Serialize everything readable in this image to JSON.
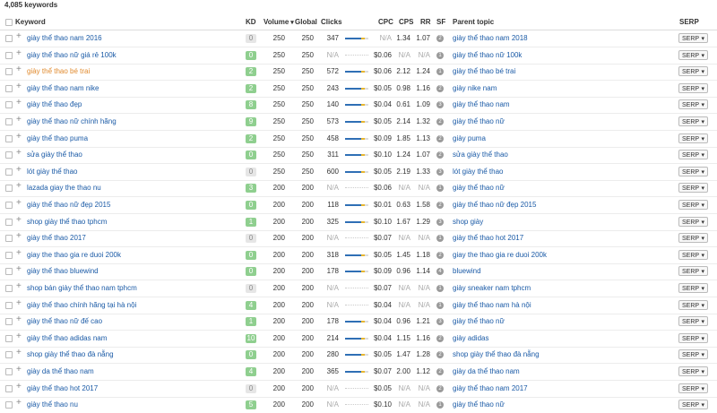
{
  "summary": "4,085 keywords",
  "columns": {
    "keyword": "Keyword",
    "kd": "KD",
    "volume": "Volume",
    "global": "Global",
    "clicks": "Clicks",
    "cpc": "CPC",
    "cps": "CPS",
    "rr": "RR",
    "sf": "SF",
    "parent": "Parent topic",
    "serp": "SERP"
  },
  "serp_button": "SERP",
  "rows": [
    {
      "keyword": "giày thể thao nam 2016",
      "kd": "0",
      "kd_color": "#e6e6e6",
      "volume": "250",
      "global": "250",
      "clicks": "347",
      "cpc": "N/A",
      "cps": "1.34",
      "rr": "1.07",
      "sf": "2",
      "parent": "giày thể thao nam 2018"
    },
    {
      "keyword": "giày thể thao nữ giá rẻ 100k",
      "kd": "0",
      "kd_color": "#8fcf8f",
      "volume": "250",
      "global": "250",
      "clicks": "N/A",
      "cpc": "$0.06",
      "cps": "N/A",
      "rr": "N/A",
      "sf": "1",
      "parent": "giày thể thao nữ 100k"
    },
    {
      "keyword": "giày thể thao bé trai",
      "keyword_color": "#e0892c",
      "kd": "2",
      "kd_color": "#8fcf8f",
      "volume": "250",
      "global": "250",
      "clicks": "572",
      "cpc": "$0.06",
      "cps": "2.12",
      "rr": "1.24",
      "sf": "1",
      "parent": "giày thể thao bé trai"
    },
    {
      "keyword": "giày thể thao nam nike",
      "kd": "2",
      "kd_color": "#8fcf8f",
      "volume": "250",
      "global": "250",
      "clicks": "243",
      "cpc": "$0.05",
      "cps": "0.98",
      "rr": "1.16",
      "sf": "2",
      "parent": "giày nike nam"
    },
    {
      "keyword": "giày thể thao đẹp",
      "kd": "8",
      "kd_color": "#8fcf8f",
      "volume": "250",
      "global": "250",
      "clicks": "140",
      "cpc": "$0.04",
      "cps": "0.61",
      "rr": "1.09",
      "sf": "3",
      "parent": "giày thể thao nam"
    },
    {
      "keyword": "giày thể thao nữ chính hãng",
      "kd": "9",
      "kd_color": "#8fcf8f",
      "volume": "250",
      "global": "250",
      "clicks": "573",
      "cpc": "$0.05",
      "cps": "2.14",
      "rr": "1.32",
      "sf": "2",
      "parent": "giày thể thao nữ"
    },
    {
      "keyword": "giày thể thao puma",
      "kd": "2",
      "kd_color": "#8fcf8f",
      "volume": "250",
      "global": "250",
      "clicks": "458",
      "cpc": "$0.09",
      "cps": "1.85",
      "rr": "1.13",
      "sf": "2",
      "parent": "giày puma"
    },
    {
      "keyword": "sửa giày thể thao",
      "kd": "0",
      "kd_color": "#8fcf8f",
      "volume": "250",
      "global": "250",
      "clicks": "311",
      "cpc": "$0.10",
      "cps": "1.24",
      "rr": "1.07",
      "sf": "2",
      "parent": "sửa giày thể thao"
    },
    {
      "keyword": "lót giày thể thao",
      "kd": "0",
      "kd_color": "#e6e6e6",
      "volume": "250",
      "global": "250",
      "clicks": "600",
      "cpc": "$0.05",
      "cps": "2.19",
      "rr": "1.33",
      "sf": "3",
      "parent": "lót giày thể thao"
    },
    {
      "keyword": "lazada giay the thao nu",
      "kd": "3",
      "kd_color": "#8fcf8f",
      "volume": "200",
      "global": "200",
      "clicks": "N/A",
      "cpc": "$0.06",
      "cps": "N/A",
      "rr": "N/A",
      "sf": "1",
      "parent": "giày thể thao nữ"
    },
    {
      "keyword": "giày thể thao nữ đẹp 2015",
      "kd": "0",
      "kd_color": "#8fcf8f",
      "volume": "200",
      "global": "200",
      "clicks": "118",
      "cpc": "$0.01",
      "cps": "0.63",
      "rr": "1.58",
      "sf": "2",
      "parent": "giày thể thao nữ đẹp 2015"
    },
    {
      "keyword": "shop giày thể thao tphcm",
      "kd": "1",
      "kd_color": "#8fcf8f",
      "volume": "200",
      "global": "200",
      "clicks": "325",
      "cpc": "$0.10",
      "cps": "1.67",
      "rr": "1.29",
      "sf": "3",
      "parent": "shop giày"
    },
    {
      "keyword": "giày thể thao 2017",
      "kd": "0",
      "kd_color": "#e6e6e6",
      "volume": "200",
      "global": "200",
      "clicks": "N/A",
      "cpc": "$0.07",
      "cps": "N/A",
      "rr": "N/A",
      "sf": "1",
      "parent": "giày thể thao hot 2017"
    },
    {
      "keyword": "giay the thao gia re duoi 200k",
      "kd": "0",
      "kd_color": "#8fcf8f",
      "volume": "200",
      "global": "200",
      "clicks": "318",
      "cpc": "$0.05",
      "cps": "1.45",
      "rr": "1.18",
      "sf": "2",
      "parent": "giay the thao gia re duoi 200k"
    },
    {
      "keyword": "giày thể thao bluewind",
      "kd": "0",
      "kd_color": "#8fcf8f",
      "volume": "200",
      "global": "200",
      "clicks": "178",
      "cpc": "$0.09",
      "cps": "0.96",
      "rr": "1.14",
      "sf": "4",
      "parent": "bluewind"
    },
    {
      "keyword": "shop bán giày thể thao nam tphcm",
      "kd": "0",
      "kd_color": "#e6e6e6",
      "volume": "200",
      "global": "200",
      "clicks": "N/A",
      "cpc": "$0.07",
      "cps": "N/A",
      "rr": "N/A",
      "sf": "1",
      "parent": "giày sneaker nam tphcm"
    },
    {
      "keyword": "giày thể thao chính hãng tại hà nội",
      "kd": "4",
      "kd_color": "#8fcf8f",
      "volume": "200",
      "global": "200",
      "clicks": "N/A",
      "cpc": "$0.04",
      "cps": "N/A",
      "rr": "N/A",
      "sf": "1",
      "parent": "giày thể thao nam hà nội"
    },
    {
      "keyword": "giày thể thao nữ đế cao",
      "kd": "1",
      "kd_color": "#8fcf8f",
      "volume": "200",
      "global": "200",
      "clicks": "178",
      "cpc": "$0.04",
      "cps": "0.96",
      "rr": "1.21",
      "sf": "3",
      "parent": "giày thể thao nữ"
    },
    {
      "keyword": "giày thể thao adidas nam",
      "kd": "10",
      "kd_color": "#8fcf8f",
      "volume": "200",
      "global": "200",
      "clicks": "214",
      "cpc": "$0.04",
      "cps": "1.15",
      "rr": "1.16",
      "sf": "2",
      "parent": "giày adidas"
    },
    {
      "keyword": "shop giày thể thao đà nẵng",
      "kd": "0",
      "kd_color": "#8fcf8f",
      "volume": "200",
      "global": "200",
      "clicks": "280",
      "cpc": "$0.05",
      "cps": "1.47",
      "rr": "1.28",
      "sf": "2",
      "parent": "shop giày thể thao đà nẵng"
    },
    {
      "keyword": "giày da thể thao nam",
      "kd": "4",
      "kd_color": "#8fcf8f",
      "volume": "200",
      "global": "200",
      "clicks": "365",
      "cpc": "$0.07",
      "cps": "2.00",
      "rr": "1.12",
      "sf": "2",
      "parent": "giày da thể thao nam"
    },
    {
      "keyword": "giày thể thao hot 2017",
      "kd": "0",
      "kd_color": "#e6e6e6",
      "volume": "200",
      "global": "200",
      "clicks": "N/A",
      "cpc": "$0.05",
      "cps": "N/A",
      "rr": "N/A",
      "sf": "2",
      "parent": "giày thể thao nam 2017"
    },
    {
      "keyword": "giày thể thao nu",
      "kd": "5",
      "kd_color": "#8fcf8f",
      "volume": "200",
      "global": "200",
      "clicks": "N/A",
      "cpc": "$0.10",
      "cps": "N/A",
      "rr": "N/A",
      "sf": "1",
      "parent": "giày thể thao nữ"
    }
  ]
}
